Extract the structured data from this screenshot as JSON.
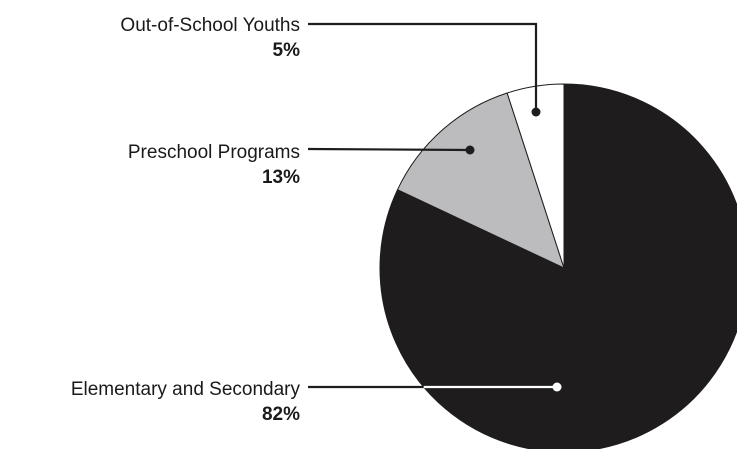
{
  "chart_data": {
    "type": "pie",
    "title": "",
    "slices": [
      {
        "label": "Elementary and Secondary",
        "value": 82,
        "value_label": "82%",
        "color": "#1f1c1d"
      },
      {
        "label": "Preschool Programs",
        "value": 13,
        "value_label": "13%",
        "color": "#bcbcbe"
      },
      {
        "label": "Out-of-School Youths",
        "value": 5,
        "value_label": "5%",
        "color": "#ffffff"
      }
    ],
    "start_angle": "12 o'clock",
    "direction": "clockwise",
    "legend": "none",
    "labels": "callouts on left with leader lines",
    "outline_color": "#1f1c1d"
  }
}
